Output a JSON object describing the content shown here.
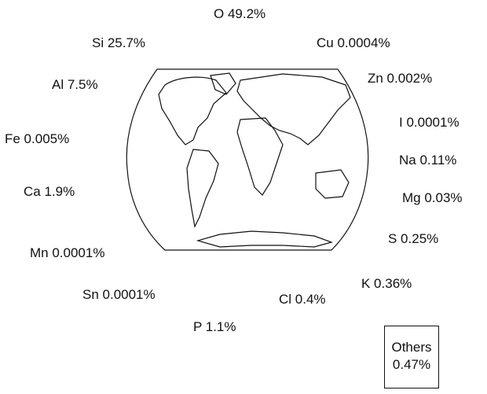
{
  "elements": [
    {
      "id": "o",
      "text": "O  49.2%"
    },
    {
      "id": "si",
      "text": "Si  25.7%"
    },
    {
      "id": "cu",
      "text": "Cu  0.0004%"
    },
    {
      "id": "al",
      "text": "Al  7.5%"
    },
    {
      "id": "zn",
      "text": "Zn  0.002%"
    },
    {
      "id": "i",
      "text": "I  0.0001%"
    },
    {
      "id": "fe",
      "text": "Fe  0.005%"
    },
    {
      "id": "na",
      "text": "Na  0.11%"
    },
    {
      "id": "ca",
      "text": "Ca  1.9%"
    },
    {
      "id": "mg",
      "text": "Mg  0.03%"
    },
    {
      "id": "s",
      "text": "S  0.25%"
    },
    {
      "id": "mn",
      "text": "Mn  0.0001%"
    },
    {
      "id": "k",
      "text": "K  0.36%"
    },
    {
      "id": "sn",
      "text": "Sn 0.0001%"
    },
    {
      "id": "cl",
      "text": "Cl  0.4%"
    },
    {
      "id": "p",
      "text": "P  1.1%"
    }
  ],
  "others": {
    "name": "Others",
    "value": "0.47%"
  }
}
